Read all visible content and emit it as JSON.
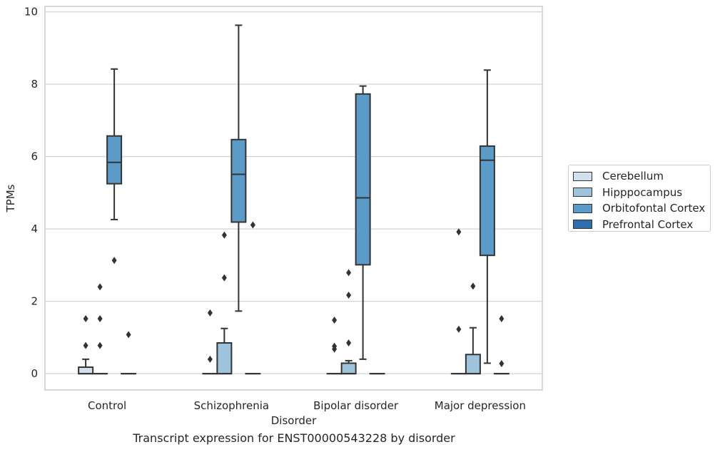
{
  "chart_data": {
    "type": "boxplot",
    "caption": "Transcript expression for ENST00000543228 by disorder",
    "xlabel": "Disorder",
    "ylabel": "TPMs",
    "ylim": [
      -0.45,
      10.15
    ],
    "yticks": [
      0,
      2,
      4,
      6,
      8,
      10
    ],
    "grid": "horizontal",
    "legend_position": "right",
    "categories": [
      "Control",
      "Schizophrenia",
      "Bipolar disorder",
      "Major depression"
    ],
    "series": [
      {
        "name": "Cerebellum",
        "color": "#d0e0ee",
        "boxes": [
          {
            "whisker_low": 0,
            "q1": 0,
            "median": 0,
            "q3": 0.18,
            "whisker_high": 0.4,
            "outliers": [
              1.52,
              0.78
            ]
          },
          {
            "whisker_low": 0,
            "q1": 0,
            "median": 0,
            "q3": 0,
            "whisker_high": 0,
            "outliers": [
              1.68,
              0.4
            ]
          },
          {
            "whisker_low": 0,
            "q1": 0,
            "median": 0,
            "q3": 0,
            "whisker_high": 0,
            "outliers": [
              1.48,
              0.76,
              0.68
            ]
          },
          {
            "whisker_low": 0,
            "q1": 0,
            "median": 0,
            "q3": 0,
            "whisker_high": 0,
            "outliers": [
              3.92,
              1.23
            ]
          }
        ]
      },
      {
        "name": "Hipppocampus",
        "color": "#9dc3dd",
        "boxes": [
          {
            "whisker_low": 0,
            "q1": 0,
            "median": 0,
            "q3": 0,
            "whisker_high": 0,
            "outliers": [
              2.4,
              1.52,
              0.78
            ]
          },
          {
            "whisker_low": 0,
            "q1": 0,
            "median": 0,
            "q3": 0.85,
            "whisker_high": 1.25,
            "outliers": [
              3.83,
              2.65
            ]
          },
          {
            "whisker_low": 0,
            "q1": 0,
            "median": 0,
            "q3": 0.29,
            "whisker_high": 0.36,
            "outliers": [
              2.79,
              2.17,
              0.85
            ]
          },
          {
            "whisker_low": 0,
            "q1": 0,
            "median": 0,
            "q3": 0.53,
            "whisker_high": 1.27,
            "outliers": [
              2.42
            ]
          }
        ]
      },
      {
        "name": "Orbitofontal Cortex",
        "color": "#5b9bc8",
        "boxes": [
          {
            "whisker_low": 4.26,
            "q1": 5.25,
            "median": 5.84,
            "q3": 6.57,
            "whisker_high": 8.42,
            "outliers": [
              3.13
            ]
          },
          {
            "whisker_low": 1.73,
            "q1": 4.19,
            "median": 5.51,
            "q3": 6.47,
            "whisker_high": 9.63,
            "outliers": []
          },
          {
            "whisker_low": 0.4,
            "q1": 3.01,
            "median": 4.86,
            "q3": 7.73,
            "whisker_high": 7.95,
            "outliers": []
          },
          {
            "whisker_low": 0.29,
            "q1": 3.27,
            "median": 5.9,
            "q3": 6.29,
            "whisker_high": 8.39,
            "outliers": []
          }
        ]
      },
      {
        "name": "Prefrontal Cortex",
        "color": "#2f6fae",
        "boxes": [
          {
            "whisker_low": 0,
            "q1": 0,
            "median": 0,
            "q3": 0,
            "whisker_high": 0,
            "outliers": [
              1.08
            ]
          },
          {
            "whisker_low": 0,
            "q1": 0,
            "median": 0,
            "q3": 0,
            "whisker_high": 0,
            "outliers": [
              4.11
            ]
          },
          {
            "whisker_low": 0,
            "q1": 0,
            "median": 0,
            "q3": 0,
            "whisker_high": 0,
            "outliers": []
          },
          {
            "whisker_low": 0,
            "q1": 0,
            "median": 0,
            "q3": 0,
            "whisker_high": 0,
            "outliers": [
              1.52,
              0.28
            ]
          }
        ]
      }
    ]
  }
}
